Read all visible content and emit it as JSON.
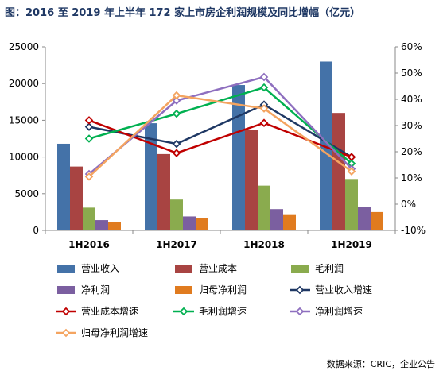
{
  "title": "图：2016 至 2019 年上半年 172 家上市房企利润规模及同比增幅（亿元）",
  "source": "数据来源：CRIC，企业公告",
  "chart_data": {
    "type": "bar",
    "categories": [
      "1H2016",
      "1H2017",
      "1H2018",
      "1H2019"
    ],
    "y_left": {
      "ylim": [
        0,
        25000
      ],
      "ticks": [
        0,
        5000,
        10000,
        15000,
        20000,
        25000
      ]
    },
    "y_right": {
      "ylim": [
        -10,
        60
      ],
      "ticks": [
        -10,
        0,
        10,
        20,
        30,
        40,
        50,
        60
      ],
      "tick_labels": [
        "-10%",
        "0%",
        "10%",
        "20%",
        "30%",
        "40%",
        "50%",
        "60%"
      ]
    },
    "bar_series": [
      {
        "name": "营业收入",
        "color": "#4472a8",
        "values": [
          11800,
          14600,
          19800,
          23000
        ]
      },
      {
        "name": "营业成本",
        "color": "#a84442",
        "values": [
          8700,
          10400,
          13700,
          16000
        ]
      },
      {
        "name": "毛利润",
        "color": "#8aab4e",
        "values": [
          3100,
          4200,
          6100,
          7000
        ]
      },
      {
        "name": "净利润",
        "color": "#7b5fa0",
        "values": [
          1400,
          1900,
          2900,
          3200
        ]
      },
      {
        "name": "归母净利润",
        "color": "#e07b1f",
        "values": [
          1100,
          1700,
          2200,
          2500
        ]
      }
    ],
    "line_series": [
      {
        "name": "营业收入增速",
        "color": "#1f3864",
        "values": [
          29.5,
          23,
          38,
          18
        ]
      },
      {
        "name": "营业成本增速",
        "color": "#c00000",
        "values": [
          32,
          19.5,
          31,
          18
        ]
      },
      {
        "name": "毛利润增速",
        "color": "#00b050",
        "values": [
          25,
          34.5,
          44.5,
          15.5
        ]
      },
      {
        "name": "净利润增速",
        "color": "#8e6fbf",
        "values": [
          11.5,
          39.5,
          48.5,
          13.5
        ]
      },
      {
        "name": "归母净利润增速",
        "color": "#f4a460",
        "values": [
          10.5,
          41.5,
          36.5,
          12.5
        ]
      }
    ],
    "legend_placement": "bottom",
    "grid": false
  }
}
